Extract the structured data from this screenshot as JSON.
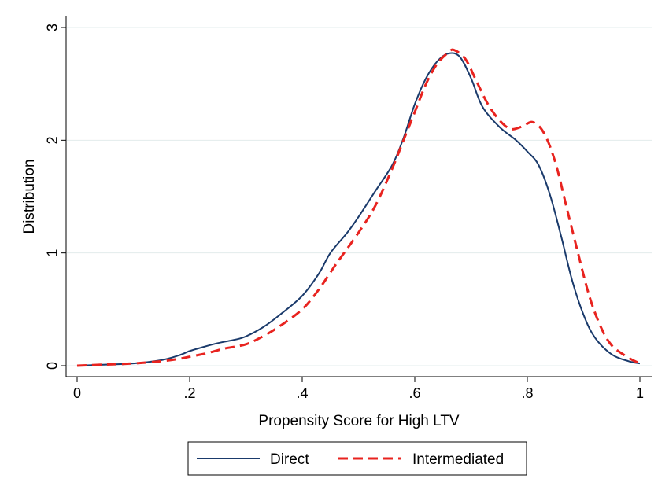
{
  "chart_data": {
    "type": "line",
    "title": "",
    "xlabel": "Propensity Score for High LTV",
    "ylabel": "Distribution",
    "xlim": [
      0,
      1
    ],
    "ylim": [
      0,
      3
    ],
    "xticks": [
      {
        "value": 0,
        "label": "0"
      },
      {
        "value": 0.2,
        "label": ".2"
      },
      {
        "value": 0.4,
        "label": ".4"
      },
      {
        "value": 0.6,
        "label": ".6"
      },
      {
        "value": 0.8,
        "label": ".8"
      },
      {
        "value": 1,
        "label": "1"
      }
    ],
    "yticks": [
      {
        "value": 0,
        "label": "0"
      },
      {
        "value": 1,
        "label": "1"
      },
      {
        "value": 2,
        "label": "2"
      },
      {
        "value": 3,
        "label": "3"
      }
    ],
    "grid": "horizontal",
    "legend_position": "bottom",
    "series": [
      {
        "name": "Direct",
        "color": "#1a3a6b",
        "style": "solid",
        "points": [
          [
            0.0,
            0.0
          ],
          [
            0.05,
            0.01
          ],
          [
            0.1,
            0.02
          ],
          [
            0.15,
            0.05
          ],
          [
            0.18,
            0.09
          ],
          [
            0.2,
            0.13
          ],
          [
            0.22,
            0.16
          ],
          [
            0.25,
            0.2
          ],
          [
            0.28,
            0.23
          ],
          [
            0.3,
            0.26
          ],
          [
            0.33,
            0.34
          ],
          [
            0.36,
            0.45
          ],
          [
            0.4,
            0.62
          ],
          [
            0.43,
            0.82
          ],
          [
            0.45,
            1.0
          ],
          [
            0.48,
            1.18
          ],
          [
            0.5,
            1.32
          ],
          [
            0.53,
            1.55
          ],
          [
            0.56,
            1.78
          ],
          [
            0.58,
            2.02
          ],
          [
            0.6,
            2.32
          ],
          [
            0.62,
            2.55
          ],
          [
            0.64,
            2.7
          ],
          [
            0.66,
            2.77
          ],
          [
            0.68,
            2.74
          ],
          [
            0.7,
            2.55
          ],
          [
            0.72,
            2.3
          ],
          [
            0.75,
            2.12
          ],
          [
            0.78,
            2.0
          ],
          [
            0.8,
            1.9
          ],
          [
            0.82,
            1.78
          ],
          [
            0.84,
            1.52
          ],
          [
            0.86,
            1.15
          ],
          [
            0.88,
            0.75
          ],
          [
            0.9,
            0.45
          ],
          [
            0.92,
            0.25
          ],
          [
            0.95,
            0.1
          ],
          [
            0.98,
            0.04
          ],
          [
            1.0,
            0.02
          ]
        ]
      },
      {
        "name": "Intermediated",
        "color": "#e8231f",
        "style": "dashed",
        "points": [
          [
            0.0,
            0.0
          ],
          [
            0.05,
            0.01
          ],
          [
            0.1,
            0.02
          ],
          [
            0.15,
            0.04
          ],
          [
            0.18,
            0.06
          ],
          [
            0.2,
            0.08
          ],
          [
            0.23,
            0.11
          ],
          [
            0.26,
            0.15
          ],
          [
            0.3,
            0.19
          ],
          [
            0.33,
            0.26
          ],
          [
            0.36,
            0.35
          ],
          [
            0.4,
            0.5
          ],
          [
            0.43,
            0.68
          ],
          [
            0.46,
            0.9
          ],
          [
            0.5,
            1.18
          ],
          [
            0.53,
            1.42
          ],
          [
            0.56,
            1.75
          ],
          [
            0.58,
            2.0
          ],
          [
            0.6,
            2.25
          ],
          [
            0.62,
            2.5
          ],
          [
            0.64,
            2.68
          ],
          [
            0.66,
            2.78
          ],
          [
            0.67,
            2.8
          ],
          [
            0.69,
            2.72
          ],
          [
            0.71,
            2.52
          ],
          [
            0.73,
            2.32
          ],
          [
            0.75,
            2.18
          ],
          [
            0.77,
            2.1
          ],
          [
            0.79,
            2.12
          ],
          [
            0.81,
            2.16
          ],
          [
            0.83,
            2.06
          ],
          [
            0.85,
            1.8
          ],
          [
            0.87,
            1.4
          ],
          [
            0.89,
            1.0
          ],
          [
            0.91,
            0.62
          ],
          [
            0.93,
            0.35
          ],
          [
            0.95,
            0.18
          ],
          [
            0.98,
            0.07
          ],
          [
            1.0,
            0.02
          ]
        ]
      }
    ]
  }
}
